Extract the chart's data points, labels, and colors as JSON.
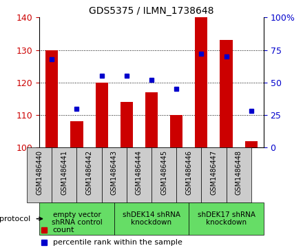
{
  "title": "GDS5375 / ILMN_1738648",
  "samples": [
    "GSM1486440",
    "GSM1486441",
    "GSM1486442",
    "GSM1486443",
    "GSM1486444",
    "GSM1486445",
    "GSM1486446",
    "GSM1486447",
    "GSM1486448"
  ],
  "counts": [
    130,
    108,
    120,
    114,
    117,
    110,
    140,
    133,
    102
  ],
  "percentiles": [
    68,
    30,
    55,
    55,
    52,
    45,
    72,
    70,
    28
  ],
  "ylim_left": [
    100,
    140
  ],
  "ylim_right": [
    0,
    100
  ],
  "yticks_left": [
    100,
    110,
    120,
    130,
    140
  ],
  "yticks_right": [
    0,
    25,
    50,
    75,
    100
  ],
  "bar_color": "#CC0000",
  "dot_color": "#0000CC",
  "bar_width": 0.5,
  "groups": [
    {
      "label": "empty vector\nshRNA control",
      "start": 0,
      "end": 3,
      "color": "#66DD66"
    },
    {
      "label": "shDEK14 shRNA\nknockdown",
      "start": 3,
      "end": 6,
      "color": "#66DD66"
    },
    {
      "label": "shDEK17 shRNA\nknockdown",
      "start": 6,
      "end": 9,
      "color": "#66DD66"
    }
  ],
  "protocol_label": "protocol",
  "legend_count_label": "count",
  "legend_percentile_label": "percentile rank within the sample",
  "background_color": "#ffffff",
  "tick_area_color": "#cccccc",
  "sample_label_fontsize": 7,
  "group_label_fontsize": 7.5,
  "title_fontsize": 10
}
